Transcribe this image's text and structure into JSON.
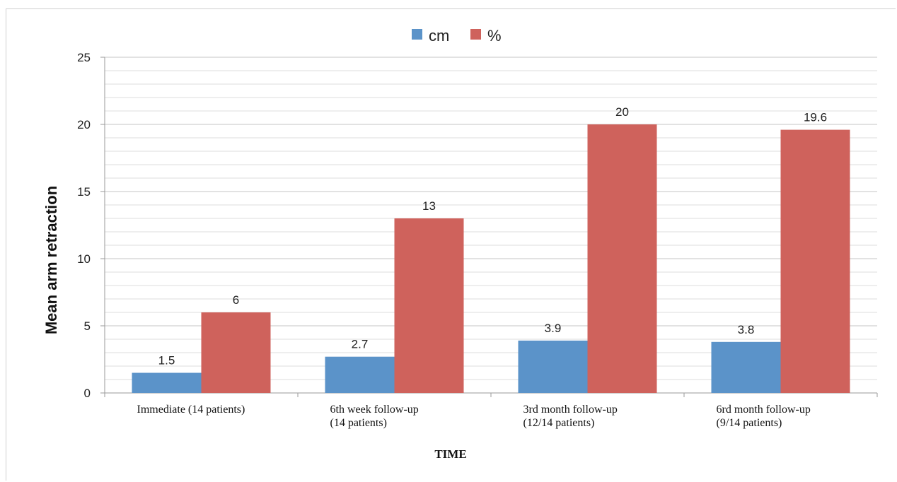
{
  "chart_data": {
    "type": "bar",
    "categories": [
      [
        "Immediate (14 patients)"
      ],
      [
        "6th week follow-up",
        "(14 patients)"
      ],
      [
        "3rd month follow-up",
        "(12/14 patients)"
      ],
      [
        "6rd month follow-up",
        "(9/14 patients)"
      ]
    ],
    "series": [
      {
        "name": "cm",
        "values": [
          1.5,
          2.7,
          3.9,
          3.8
        ],
        "color": "#5b93c9",
        "labels": [
          "1.5",
          "2.7",
          "3.9",
          "3.8"
        ]
      },
      {
        "name": "%",
        "values": [
          6,
          13,
          20,
          19.6
        ],
        "color": "#cf625c",
        "labels": [
          "6",
          "13",
          "20",
          "19.6"
        ]
      }
    ],
    "xlabel": "TIME",
    "ylabel": "Mean arm retraction",
    "ylim": [
      0,
      25
    ],
    "yticks": [
      "0",
      "5",
      "10",
      "15",
      "20",
      "25"
    ],
    "minor_grid_step": 1,
    "grid": true,
    "legend": "top-center"
  }
}
